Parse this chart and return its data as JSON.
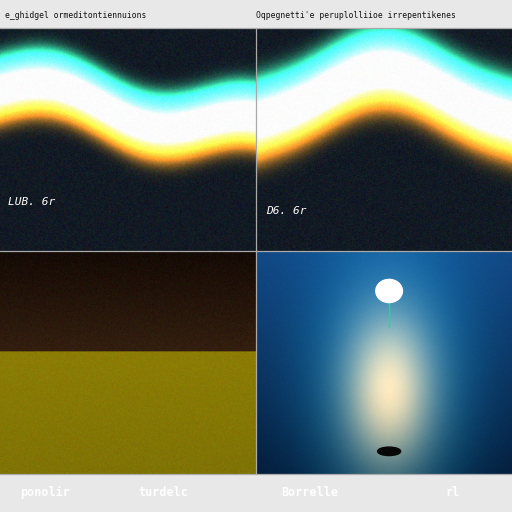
{
  "title_left": "e_ghidgel ormeditontiennuions",
  "title_right": "Oqpegnetti'e peruplolliioe irrepentikenes",
  "label_top_left": "LUB. 6r",
  "label_top_right": "D6. 6r",
  "footer_labels": [
    "ponolir",
    "turdelc",
    "Borrelle",
    "rl"
  ],
  "footer_bg": "#1a3080",
  "footer_text_color": "#ffffff",
  "divider_color": "#aaaaaa",
  "title_bg": "#e8e8e8",
  "title_text_color": "#111111"
}
